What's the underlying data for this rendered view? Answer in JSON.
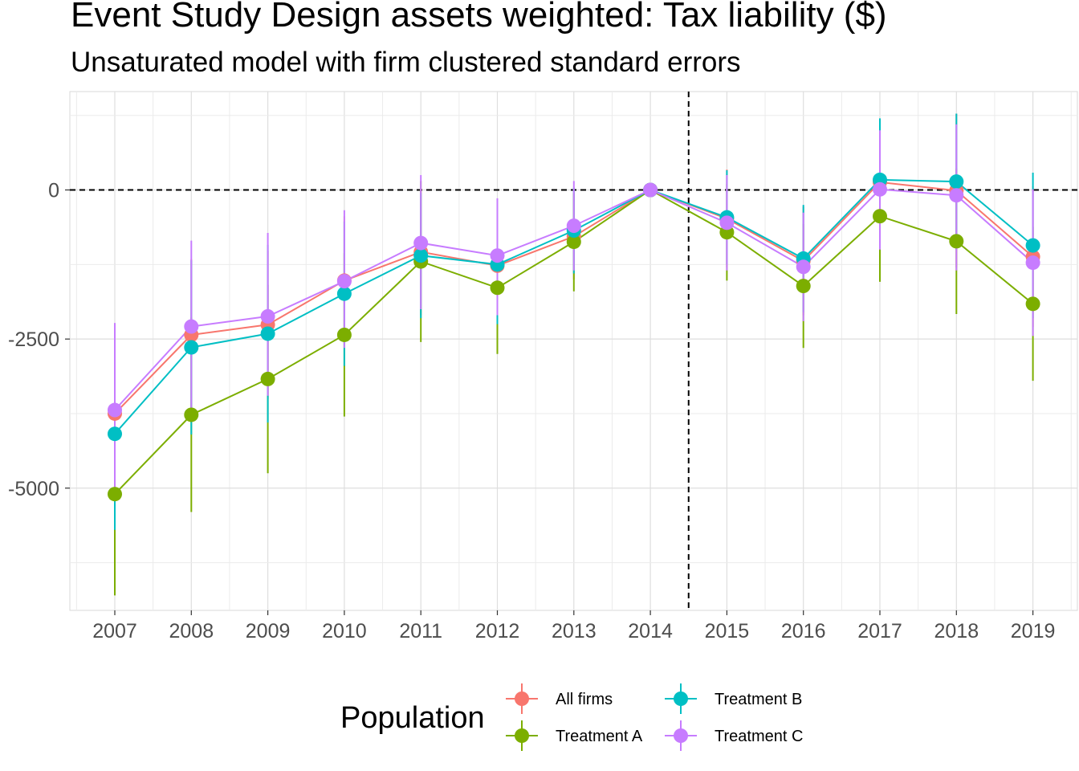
{
  "chart_data": {
    "type": "line",
    "title": "Event Study Design assets weighted: Tax liability  ($)",
    "subtitle": "Unsaturated model with firm clustered standard errors",
    "xlabel": "",
    "ylabel": "",
    "categories": [
      "2007",
      "2008",
      "2009",
      "2010",
      "2011",
      "2012",
      "2013",
      "2014",
      "2015",
      "2016",
      "2017",
      "2018",
      "2019"
    ],
    "ylim": [
      -7050,
      1650
    ],
    "yticks": [
      0,
      -2500,
      -5000
    ],
    "ytick_labels": [
      "0",
      "-2500",
      "-5000"
    ],
    "grid": true,
    "reference_lines": {
      "y": 0,
      "x_between": [
        "2014",
        "2015"
      ],
      "style": "dashed"
    },
    "legend": {
      "title": "Population",
      "position": "bottom"
    },
    "series": [
      {
        "name": "All firms",
        "color": "#F8766D",
        "values": [
          -3750,
          -2430,
          -2260,
          -1520,
          -1040,
          -1270,
          -780,
          0,
          -480,
          -1190,
          130,
          -10,
          -1120
        ],
        "lower": [
          -5200,
          -3700,
          -3500,
          -2600,
          -2100,
          -2200,
          -1500,
          0,
          -1300,
          -2100,
          -900,
          -1300,
          -2300
        ],
        "upper": [
          -2300,
          -1160,
          -1020,
          -440,
          20,
          -340,
          -60,
          0,
          340,
          -280,
          1160,
          1280,
          60
        ]
      },
      {
        "name": "Treatment A",
        "color": "#7CAE00",
        "values": [
          -5100,
          -3770,
          -3170,
          -2430,
          -1200,
          -1640,
          -870,
          0,
          -710,
          -1610,
          -440,
          -860,
          -1910
        ],
        "lower": [
          -6800,
          -5400,
          -4750,
          -3800,
          -2550,
          -2750,
          -1700,
          0,
          -1520,
          -2650,
          -1540,
          -2080,
          -3200
        ],
        "upper": [
          -3400,
          -2140,
          -1590,
          -1060,
          150,
          -530,
          -40,
          0,
          100,
          -570,
          660,
          360,
          -620
        ]
      },
      {
        "name": "Treatment B",
        "color": "#00BFC4",
        "values": [
          -4090,
          -2640,
          -2410,
          -1740,
          -1100,
          -1250,
          -680,
          0,
          -460,
          -1150,
          170,
          140,
          -930
        ],
        "lower": [
          -5700,
          -4100,
          -3900,
          -2950,
          -2150,
          -2250,
          -1400,
          0,
          -1250,
          -2050,
          -860,
          -1000,
          -2150
        ],
        "upper": [
          -2480,
          -1180,
          -920,
          -530,
          -50,
          -250,
          40,
          0,
          330,
          -250,
          1200,
          1280,
          290
        ]
      },
      {
        "name": "Treatment C",
        "color": "#C77CFF",
        "values": [
          -3690,
          -2290,
          -2120,
          -1530,
          -890,
          -1100,
          -600,
          0,
          -550,
          -1290,
          10,
          -90,
          -1220
        ],
        "lower": [
          -5150,
          -3650,
          -3450,
          -2650,
          -2000,
          -2100,
          -1350,
          0,
          -1350,
          -2200,
          -1000,
          -1350,
          -2450
        ],
        "upper": [
          -2230,
          -850,
          -720,
          -340,
          250,
          -140,
          150,
          0,
          250,
          -380,
          1000,
          1100,
          10
        ]
      }
    ]
  }
}
